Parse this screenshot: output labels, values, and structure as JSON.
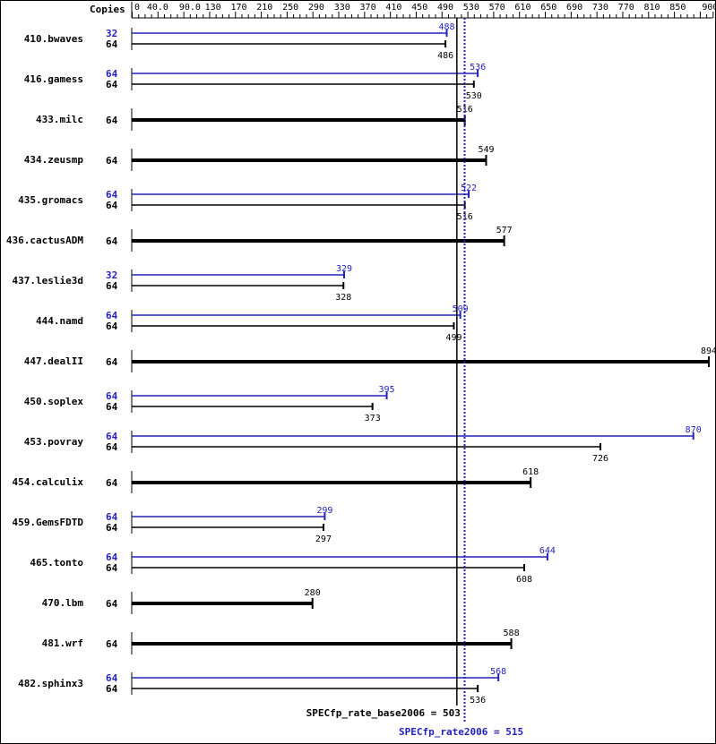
{
  "chart_data": {
    "type": "bar",
    "orientation": "horizontal",
    "copies_header": "Copies",
    "xlim": [
      0,
      900
    ],
    "tick_labels": [
      "0",
      "40.0",
      "90.0",
      "130",
      "170",
      "210",
      "250",
      "290",
      "330",
      "370",
      "410",
      "450",
      "490",
      "530",
      "570",
      "610",
      "650",
      "690",
      "730",
      "770",
      "810",
      "850",
      "900"
    ],
    "tick_values": [
      0,
      40,
      90,
      130,
      170,
      210,
      250,
      290,
      330,
      370,
      410,
      450,
      490,
      530,
      570,
      610,
      650,
      690,
      730,
      770,
      810,
      850,
      900
    ],
    "colors": {
      "base": "#000000",
      "peak": "#2222bb"
    },
    "rows": [
      {
        "name": "410.bwaves",
        "peak_copies": "32",
        "peak": 488,
        "base_copies": "64",
        "base": 486
      },
      {
        "name": "416.gamess",
        "peak_copies": "64",
        "peak": 536,
        "base_copies": "64",
        "base": 530
      },
      {
        "name": "433.milc",
        "base_copies": "64",
        "base": 516
      },
      {
        "name": "434.zeusmp",
        "base_copies": "64",
        "base": 549
      },
      {
        "name": "435.gromacs",
        "peak_copies": "64",
        "peak": 522,
        "base_copies": "64",
        "base": 516
      },
      {
        "name": "436.cactusADM",
        "base_copies": "64",
        "base": 577
      },
      {
        "name": "437.leslie3d",
        "peak_copies": "32",
        "peak": 329,
        "base_copies": "64",
        "base": 328
      },
      {
        "name": "444.namd",
        "peak_copies": "64",
        "peak": 509,
        "base_copies": "64",
        "base": 499
      },
      {
        "name": "447.dealII",
        "base_copies": "64",
        "base": 894
      },
      {
        "name": "450.soplex",
        "peak_copies": "64",
        "peak": 395,
        "base_copies": "64",
        "base": 373
      },
      {
        "name": "453.povray",
        "peak_copies": "64",
        "peak": 870,
        "base_copies": "64",
        "base": 726
      },
      {
        "name": "454.calculix",
        "base_copies": "64",
        "base": 618
      },
      {
        "name": "459.GemsFDTD",
        "peak_copies": "64",
        "peak": 299,
        "base_copies": "64",
        "base": 297
      },
      {
        "name": "465.tonto",
        "peak_copies": "64",
        "peak": 644,
        "base_copies": "64",
        "base": 608
      },
      {
        "name": "470.lbm",
        "base_copies": "64",
        "base": 280
      },
      {
        "name": "481.wrf",
        "base_copies": "64",
        "base": 588
      },
      {
        "name": "482.sphinx3",
        "peak_copies": "64",
        "peak": 568,
        "base_copies": "64",
        "base": 536
      }
    ],
    "summary": {
      "base_label": "SPECfp_rate_base2006 = 503",
      "base_value": 503,
      "peak_label": "SPECfp_rate2006 = 515",
      "peak_value": 515
    }
  }
}
